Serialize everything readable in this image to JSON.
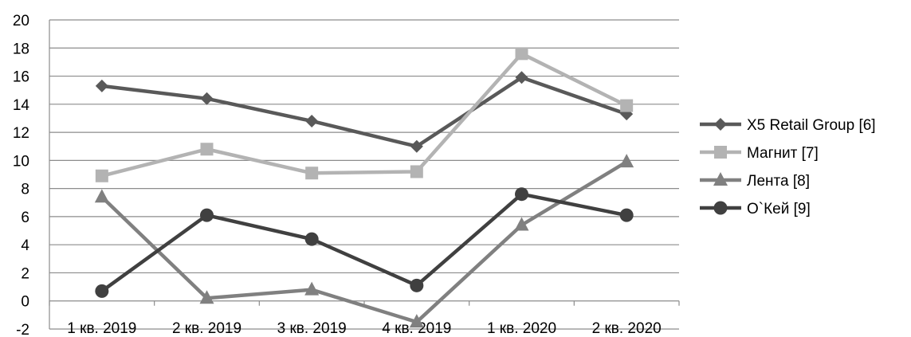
{
  "chart_data": {
    "type": "line",
    "title": "",
    "xlabel": "",
    "ylabel": "",
    "categories": [
      "1 кв. 2019",
      "2 кв. 2019",
      "3 кв. 2019",
      "4 кв. 2019",
      "1 кв. 2020",
      "2 кв. 2020"
    ],
    "ylim": [
      -2,
      20
    ],
    "yticks": [
      -2,
      0,
      2,
      4,
      6,
      8,
      10,
      12,
      14,
      16,
      18,
      20
    ],
    "grid": true,
    "legend_position": "right",
    "series": [
      {
        "name": "X5 Retail Group [6]",
        "values": [
          15.3,
          14.4,
          12.8,
          11.0,
          15.9,
          13.3
        ],
        "color": "#595959",
        "marker": "diamond"
      },
      {
        "name": "Магнит [7]",
        "values": [
          8.9,
          10.8,
          9.1,
          9.2,
          17.6,
          13.9
        ],
        "color": "#b3b3b3",
        "marker": "square"
      },
      {
        "name": "Лента [8]",
        "values": [
          7.4,
          0.2,
          0.8,
          -1.5,
          5.4,
          9.9
        ],
        "color": "#808080",
        "marker": "triangle"
      },
      {
        "name": "О`Кей [9]",
        "values": [
          0.7,
          6.1,
          4.4,
          1.1,
          7.6,
          6.1
        ],
        "color": "#404040",
        "marker": "circle"
      }
    ]
  }
}
